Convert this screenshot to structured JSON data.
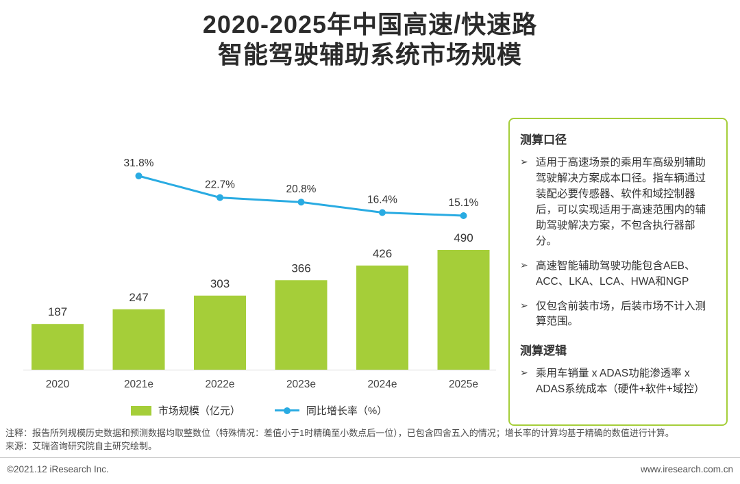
{
  "title": {
    "line1": "2020-2025年中国高速/快速路",
    "line2": "智能驾驶辅助系统市场规模"
  },
  "chart_data": {
    "type": "bar",
    "title": "2020-2025年中国高速/快速路智能驾驶辅助系统市场规模",
    "categories": [
      "2020",
      "2021e",
      "2022e",
      "2023e",
      "2024e",
      "2025e"
    ],
    "series": [
      {
        "name": "市场规模（亿元）",
        "type": "bar",
        "color": "#a5ce39",
        "values": [
          187,
          247,
          303,
          366,
          426,
          490
        ]
      },
      {
        "name": "同比增长率（%）",
        "type": "line",
        "color": "#29abe2",
        "values": [
          null,
          31.8,
          22.7,
          20.8,
          16.4,
          15.1
        ],
        "labels": [
          "",
          "31.8%",
          "22.7%",
          "20.8%",
          "16.4%",
          "15.1%"
        ]
      }
    ],
    "xlabel": "",
    "ylabel": "",
    "grid": false,
    "legend_position": "bottom"
  },
  "legend": {
    "bar_label": "市场规模（亿元）",
    "line_label": "同比增长率（%）"
  },
  "panel": {
    "border_color": "#a5ce39",
    "bullet_icon": "➢",
    "section1_title": "测算口径",
    "section1_bullets": [
      "适用于高速场景的乘用车高级别辅助驾驶解决方案成本口径。指车辆通过装配必要传感器、软件和域控制器后，可以实现适用于高速范围内的辅助驾驶解决方案，不包含执行器部分。",
      "高速智能辅助驾驶功能包含AEB、ACC、LKA、LCA、HWA和NGP",
      "仅包含前装市场，后装市场不计入测算范围。"
    ],
    "section2_title": "测算逻辑",
    "section2_bullets": [
      "乘用车销量 x ADAS功能渗透率 x ADAS系统成本（硬件+软件+域控）"
    ]
  },
  "notes": {
    "line1": "注释：报告所列规模历史数据和预测数据均取整数位（特殊情况：差值小于1时精确至小数点后一位），已包含四舍五入的情况；增长率的计算均基于精确的数值进行计算。",
    "line2": "来源：艾瑞咨询研究院自主研究绘制。"
  },
  "footer": {
    "left": "©2021.12 iResearch Inc.",
    "right": "www.iresearch.com.cn"
  }
}
